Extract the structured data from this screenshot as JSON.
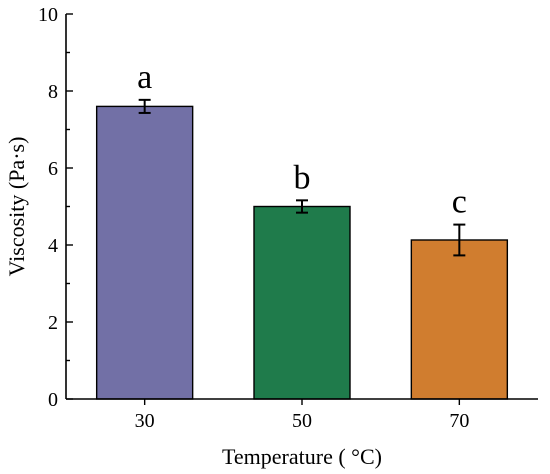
{
  "chart_data": {
    "type": "bar",
    "title": "",
    "xlabel": "Temperature ( °C)",
    "ylabel": "Viscosity (Pa·s)",
    "categories": [
      "30",
      "50",
      "70"
    ],
    "values": [
      7.6,
      5.0,
      4.13
    ],
    "errors": [
      0.17,
      0.16,
      0.4
    ],
    "significance_letters": [
      "a",
      "b",
      "c"
    ],
    "colors": [
      "#7270a6",
      "#1f7b4b",
      "#d07d2f"
    ],
    "ylim": [
      0,
      10
    ],
    "yticks": [
      "0",
      "2",
      "4",
      "6",
      "8",
      "10"
    ],
    "yticks_values": [
      0,
      2,
      4,
      6,
      8,
      10
    ],
    "grid": false,
    "legend": "none"
  }
}
